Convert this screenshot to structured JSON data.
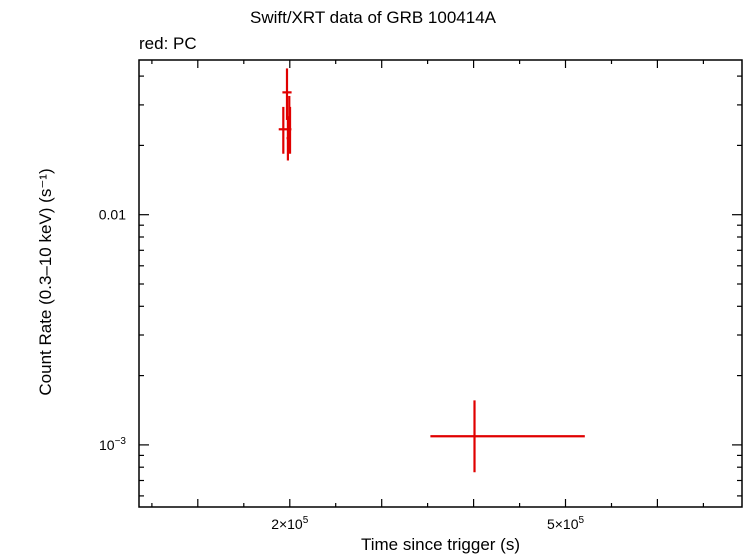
{
  "chart_data": {
    "type": "scatter",
    "title": "Swift/XRT data of GRB 100414A",
    "subtitle": "red: PC",
    "xlabel": "Time since trigger (s)",
    "ylabel": "Count Rate (0.3–10 keV) (s⁻¹)",
    "x_scale": "linear",
    "y_scale": "log",
    "xlim": [
      36000,
      692000
    ],
    "ylim": [
      0.000537,
      0.047
    ],
    "x_ticks": [
      {
        "value": 200000,
        "mantissa": "2",
        "base": "×10",
        "exp": "5"
      },
      {
        "value": 500000,
        "mantissa": "5",
        "base": "×10",
        "exp": "5"
      }
    ],
    "y_ticks": [
      {
        "value": 0.01,
        "label": "0.01"
      },
      {
        "value": 0.001,
        "base": "10",
        "exp": "−3"
      }
    ],
    "series": [
      {
        "color": "#e00000",
        "points": [
          {
            "x": 193000,
            "xerr": [
              5000,
              5000
            ],
            "y": 0.0235,
            "yerr": [
              0.0051,
              0.0059
            ]
          },
          {
            "x": 197000,
            "xerr": [
              5000,
              5000
            ],
            "y": 0.034,
            "yerr": [
              0.0082,
              0.0092
            ]
          },
          {
            "x": 198000,
            "xerr": [
              1500,
              1500
            ],
            "y": 0.0215,
            "yerr": [
              0.0043,
              0.0051
            ]
          },
          {
            "x": 199500,
            "xerr": [
              1500,
              1500
            ],
            "y": 0.0265,
            "yerr": [
              0.0055,
              0.0063
            ]
          },
          {
            "x": 200300,
            "xerr": [
              1500,
              1500
            ],
            "y": 0.0235,
            "yerr": [
              0.0051,
              0.0059
            ]
          },
          {
            "x": 401000,
            "xerr": [
              48000,
              120000
            ],
            "y": 0.00109,
            "yerr": [
              0.00033,
              0.00047
            ]
          }
        ]
      }
    ],
    "grid": false,
    "legend": "none"
  }
}
